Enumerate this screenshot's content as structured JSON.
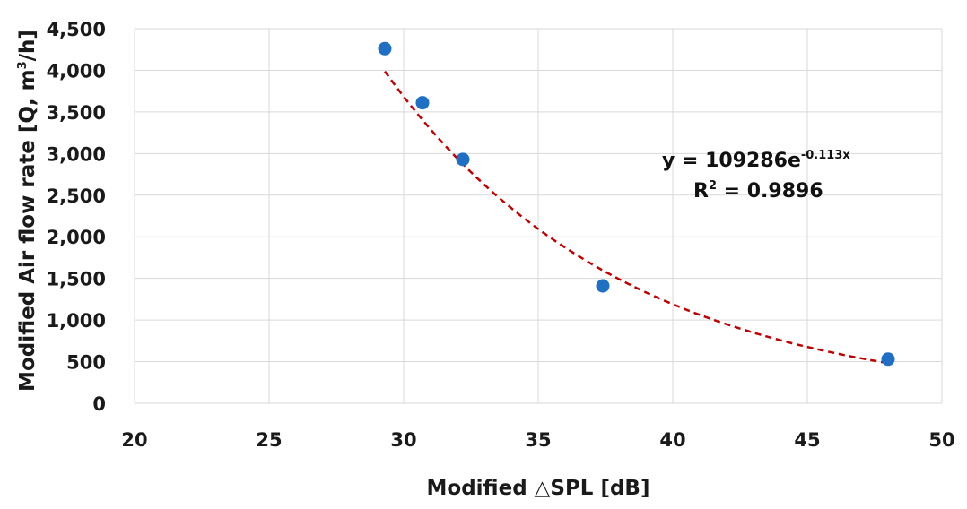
{
  "chart_data": {
    "type": "scatter",
    "series": [
      {
        "x": [
          29.3,
          30.7,
          32.2,
          37.4,
          48.0
        ],
        "y": [
          4260,
          3610,
          2930,
          1410,
          530
        ],
        "color": "#1f6fc5"
      }
    ],
    "trendline": {
      "type": "exponential",
      "a": 109286,
      "b": -0.113,
      "x_range": [
        29.3,
        48.0
      ],
      "color": "#c00000",
      "style": "dashed",
      "equation_label": "y = 109286e",
      "equation_exponent": "-0.113x",
      "r2_label_prefix": "R",
      "r2_label_exp": "2",
      "r2_label_value": " = 0.9896"
    },
    "xlabel_prefix": "Modified ",
    "xlabel_symbol": "△",
    "xlabel_suffix": "SPL [dB]",
    "ylabel_prefix": "Modified Air flow rate [Q, m",
    "ylabel_exp": "3",
    "ylabel_suffix": "/h]",
    "xlim": [
      20,
      50
    ],
    "ylim": [
      0,
      4500
    ],
    "x_ticks": [
      20,
      25,
      30,
      35,
      40,
      45,
      50
    ],
    "x_tick_labels": [
      "20",
      "25",
      "30",
      "35",
      "40",
      "45",
      "50"
    ],
    "y_ticks": [
      0,
      500,
      1000,
      1500,
      2000,
      2500,
      3000,
      3500,
      4000,
      4500
    ],
    "y_tick_labels": [
      "0",
      "500",
      "1,000",
      "1,500",
      "2,000",
      "2,500",
      "3,000",
      "3,500",
      "4,000",
      "4,500"
    ],
    "grid": true,
    "grid_color": "#d9d9d9"
  }
}
